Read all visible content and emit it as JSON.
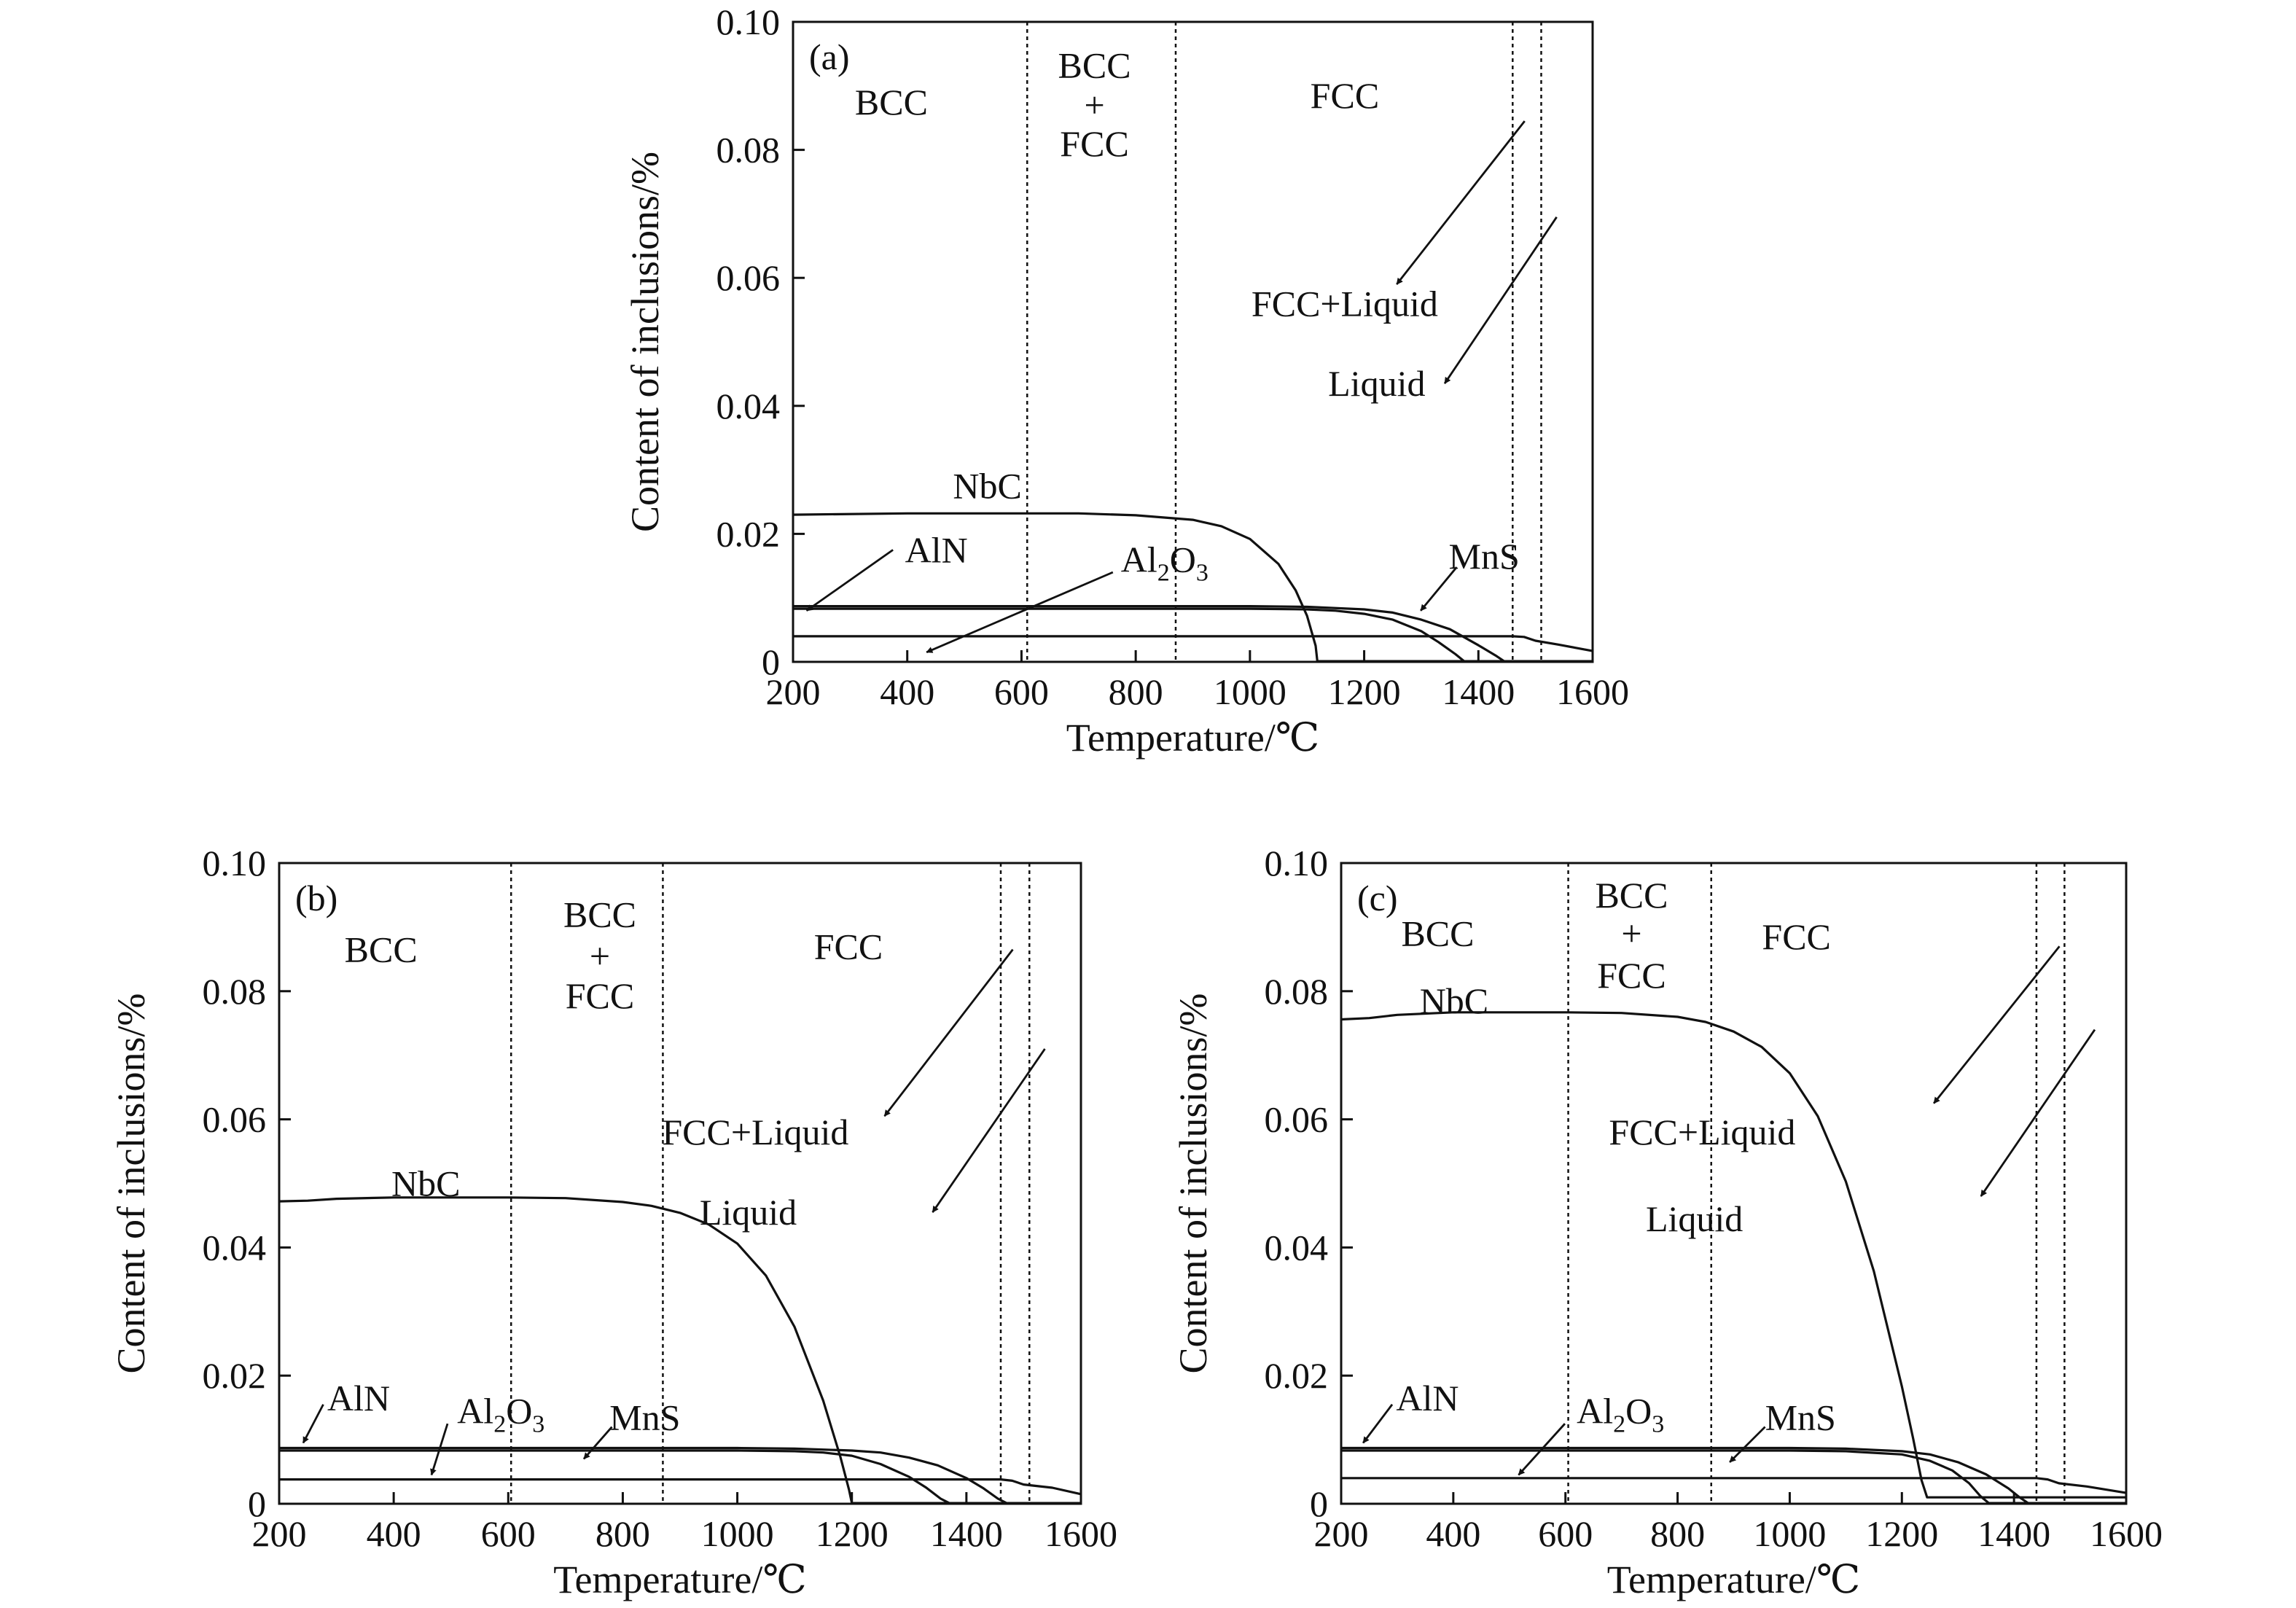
{
  "chart_data": [
    {
      "type": "line",
      "panel": "(a)",
      "xlabel": "Temperature/℃",
      "ylabel": "Content of inclusions/%",
      "xlim": [
        200,
        1600
      ],
      "ylim": [
        0,
        0.1
      ],
      "xticks": [
        "200",
        "400",
        "600",
        "800",
        "1000",
        "1200",
        "1400",
        "1600"
      ],
      "yticks": [
        "0",
        "0.02",
        "0.04",
        "0.06",
        "0.08",
        "0.10"
      ],
      "phase_boundaries": [
        610,
        870,
        1460,
        1510
      ],
      "phase_labels": [
        "BCC",
        "BCC",
        "+",
        "FCC",
        "FCC",
        "FCC+Liquid",
        "Liquid"
      ],
      "series": [
        {
          "name": "NbC",
          "x": [
            200,
            400,
            600,
            700,
            800,
            900,
            950,
            1000,
            1050,
            1080,
            1100,
            1115,
            1118,
            1600
          ],
          "y": [
            0.023,
            0.0232,
            0.0232,
            0.0232,
            0.0229,
            0.0222,
            0.0212,
            0.0192,
            0.0153,
            0.0112,
            0.0072,
            0.0025,
            0.0001,
            0.0001
          ]
        },
        {
          "name": "AlN",
          "x": [
            200,
            600,
            900,
            1000,
            1100,
            1200,
            1250,
            1300,
            1350,
            1400,
            1430,
            1445,
            1600
          ],
          "y": [
            0.0087,
            0.0087,
            0.0087,
            0.0087,
            0.0086,
            0.0082,
            0.0077,
            0.0066,
            0.0051,
            0.0026,
            0.001,
            0.0001,
            0.0001
          ]
        },
        {
          "name": "Al2O3",
          "x": [
            200,
            600,
            900,
            1000,
            1100,
            1150,
            1200,
            1250,
            1300,
            1330,
            1360,
            1375,
            1600
          ],
          "y": [
            0.0083,
            0.0083,
            0.0083,
            0.0083,
            0.0082,
            0.008,
            0.0075,
            0.0066,
            0.0048,
            0.0031,
            0.0012,
            0.0001,
            0.0001
          ]
        },
        {
          "name": "MnS",
          "x": [
            200,
            1000,
            1460,
            1480,
            1500,
            1540,
            1600
          ],
          "y": [
            0.004,
            0.004,
            0.004,
            0.0039,
            0.0033,
            0.0027,
            0.0017
          ]
        }
      ]
    },
    {
      "type": "line",
      "panel": "(b)",
      "xlabel": "Temperature/℃",
      "ylabel": "Content of inclusions/%",
      "xlim": [
        200,
        1600
      ],
      "ylim": [
        0,
        0.1
      ],
      "xticks": [
        "200",
        "400",
        "600",
        "800",
        "1000",
        "1200",
        "1400",
        "1600"
      ],
      "yticks": [
        "0",
        "0.02",
        "0.04",
        "0.06",
        "0.08",
        "0.10"
      ],
      "phase_boundaries": [
        605,
        870,
        1460,
        1510
      ],
      "phase_labels": [
        "BCC",
        "BCC",
        "+",
        "FCC",
        "FCC",
        "FCC+Liquid",
        "Liquid"
      ],
      "series": [
        {
          "name": "NbC",
          "x": [
            200,
            250,
            300,
            400,
            600,
            700,
            800,
            850,
            900,
            950,
            1000,
            1050,
            1100,
            1150,
            1180,
            1195,
            1200,
            1600
          ],
          "y": [
            0.0472,
            0.0473,
            0.0476,
            0.0478,
            0.0478,
            0.0477,
            0.0471,
            0.0465,
            0.0454,
            0.0436,
            0.0406,
            0.0356,
            0.0276,
            0.0161,
            0.0073,
            0.0022,
            0.0001,
            0.0001
          ]
        },
        {
          "name": "AlN",
          "x": [
            200,
            600,
            1000,
            1100,
            1200,
            1250,
            1300,
            1350,
            1400,
            1430,
            1455,
            1470,
            1600
          ],
          "y": [
            0.0087,
            0.0087,
            0.0087,
            0.0086,
            0.0083,
            0.008,
            0.0072,
            0.006,
            0.004,
            0.0024,
            0.0008,
            0.0001,
            0.0001
          ]
        },
        {
          "name": "Al2O3",
          "x": [
            200,
            600,
            1000,
            1100,
            1150,
            1200,
            1250,
            1300,
            1330,
            1355,
            1370,
            1600
          ],
          "y": [
            0.0083,
            0.0083,
            0.0083,
            0.0082,
            0.008,
            0.0075,
            0.0062,
            0.0042,
            0.0025,
            0.0008,
            0.0001,
            0.0001
          ]
        },
        {
          "name": "MnS",
          "x": [
            200,
            1000,
            1460,
            1480,
            1500,
            1550,
            1600
          ],
          "y": [
            0.0038,
            0.0038,
            0.0038,
            0.0036,
            0.003,
            0.0025,
            0.0015
          ]
        }
      ]
    },
    {
      "type": "line",
      "panel": "(c)",
      "xlabel": "Temperature/℃",
      "ylabel": "Content of inclusions/%",
      "xlim": [
        200,
        1600
      ],
      "ylim": [
        0,
        0.1
      ],
      "xticks": [
        "200",
        "400",
        "600",
        "800",
        "1000",
        "1200",
        "1400",
        "1600"
      ],
      "yticks": [
        "0",
        "0.02",
        "0.04",
        "0.06",
        "0.08",
        "0.10"
      ],
      "phase_boundaries": [
        605,
        860,
        1440,
        1490
      ],
      "phase_labels": [
        "BCC",
        "BCC",
        "+",
        "FCC",
        "FCC",
        "FCC+Liquid",
        "Liquid"
      ],
      "series": [
        {
          "name": "NbC",
          "x": [
            200,
            250,
            300,
            400,
            600,
            700,
            800,
            850,
            900,
            950,
            1000,
            1050,
            1100,
            1150,
            1200,
            1220,
            1235,
            1245,
            1600
          ],
          "y": [
            0.0756,
            0.0758,
            0.0763,
            0.0767,
            0.0767,
            0.0766,
            0.076,
            0.0752,
            0.0737,
            0.0713,
            0.0672,
            0.0605,
            0.0503,
            0.0363,
            0.0183,
            0.0102,
            0.0037,
            0.001,
            0.001
          ]
        },
        {
          "name": "AlN",
          "x": [
            200,
            600,
            1000,
            1100,
            1200,
            1250,
            1300,
            1350,
            1390,
            1410,
            1425,
            1600
          ],
          "y": [
            0.0087,
            0.0087,
            0.0087,
            0.0086,
            0.0082,
            0.0077,
            0.0065,
            0.0046,
            0.0024,
            0.001,
            0.0001,
            0.0001
          ]
        },
        {
          "name": "Al2O3",
          "x": [
            200,
            600,
            1000,
            1100,
            1200,
            1250,
            1290,
            1320,
            1340,
            1355,
            1600
          ],
          "y": [
            0.0083,
            0.0083,
            0.0083,
            0.0082,
            0.0077,
            0.0067,
            0.0052,
            0.0032,
            0.0012,
            0.0001,
            0.0001
          ]
        },
        {
          "name": "MnS",
          "x": [
            200,
            1000,
            1440,
            1460,
            1480,
            1530,
            1600
          ],
          "y": [
            0.004,
            0.004,
            0.004,
            0.0038,
            0.0032,
            0.0027,
            0.0017
          ]
        }
      ]
    }
  ]
}
